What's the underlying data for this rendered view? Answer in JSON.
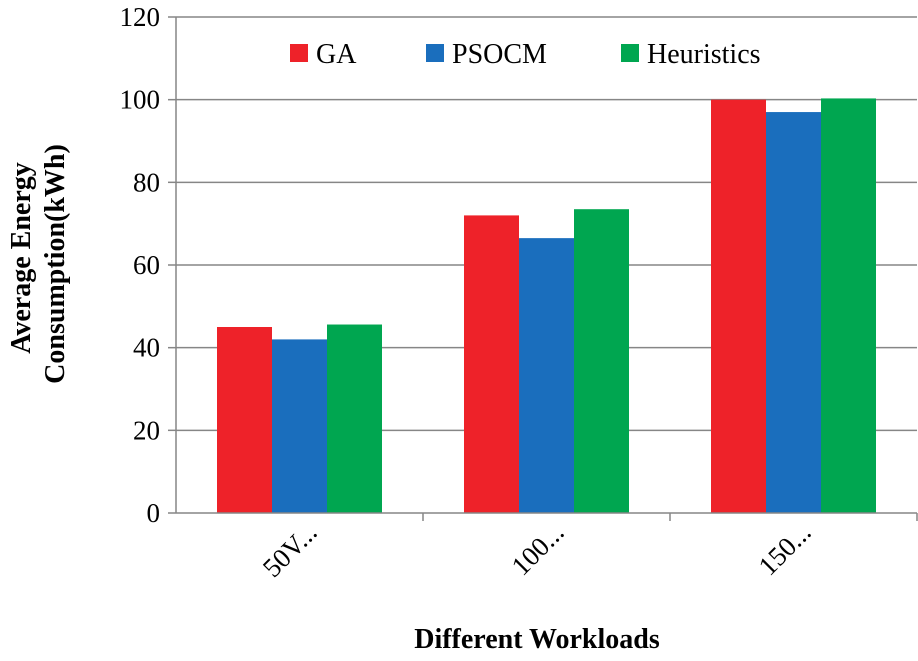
{
  "chart_data": {
    "type": "bar",
    "title": "",
    "xlabel": "Different Workloads",
    "ylabel_lines": [
      "Average Energy",
      "Consumption(kWh)"
    ],
    "categories": [
      "50V...",
      "100...",
      "150..."
    ],
    "series": [
      {
        "name": "GA",
        "color": "#ee2229",
        "values": [
          45,
          72,
          100
        ]
      },
      {
        "name": "PSOCM",
        "color": "#1a6ebd",
        "values": [
          42,
          66.5,
          97
        ]
      },
      {
        "name": "Heuristics",
        "color": "#00a650",
        "values": [
          45.6,
          73.5,
          100.3
        ]
      }
    ],
    "ylim": [
      0,
      120
    ],
    "yticks": [
      0,
      20,
      40,
      60,
      80,
      100,
      120
    ],
    "grid": true,
    "legend_position": "top-center"
  }
}
